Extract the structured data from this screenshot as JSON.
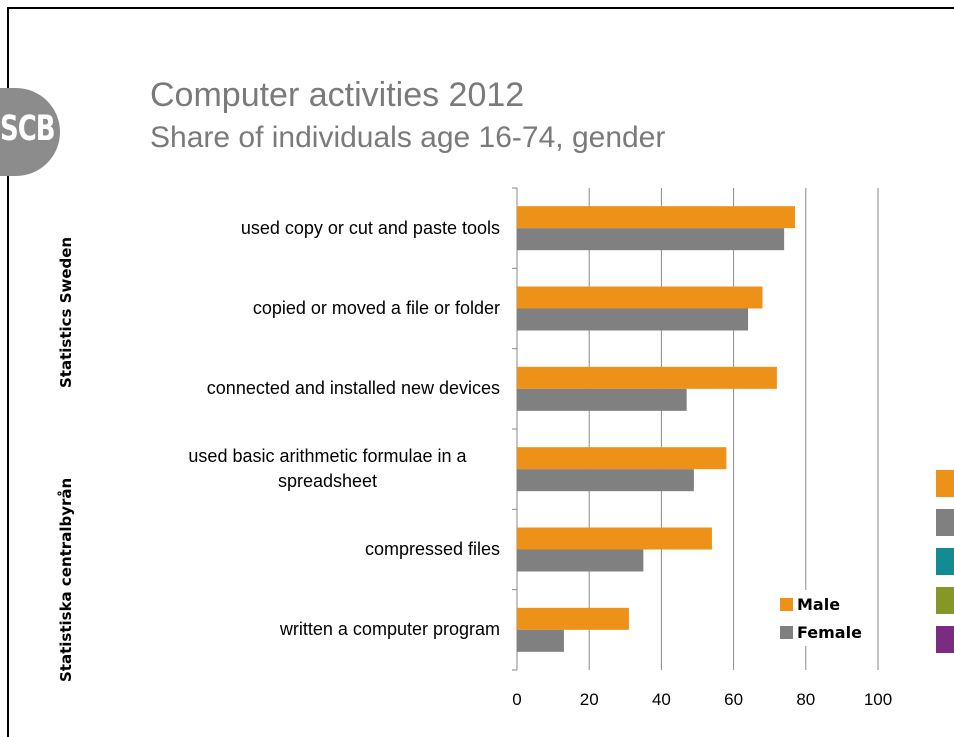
{
  "slide": {
    "title": "Computer activities 2012",
    "subtitle": "Share of individuals age 16-74, gender",
    "logo_text": "SCB",
    "side_label_en": "Statistics Sweden",
    "side_label_sv": "Statistiska centralbyrån",
    "side_tab_colors": [
      "#ee9119",
      "#808080",
      "#138b93",
      "#869727",
      "#7b2c80"
    ]
  },
  "chart_data": {
    "type": "bar",
    "orientation": "horizontal",
    "categories": [
      "used copy or cut and paste tools",
      "copied or moved a file or folder",
      "connected and installed new devices",
      "used basic arithmetic formulae in a spreadsheet",
      "compressed files",
      "written a computer program"
    ],
    "series": [
      {
        "name": "Male",
        "color": "#ee9119",
        "values": [
          77,
          68,
          72,
          58,
          54,
          31
        ]
      },
      {
        "name": "Female",
        "color": "#808080",
        "values": [
          74,
          64,
          47,
          49,
          35,
          13
        ]
      }
    ],
    "xlim": [
      0,
      100
    ],
    "xticks": [
      "0",
      "20",
      "40",
      "60",
      "80",
      "100"
    ],
    "grid": true,
    "legend_position": "bottom-right"
  }
}
